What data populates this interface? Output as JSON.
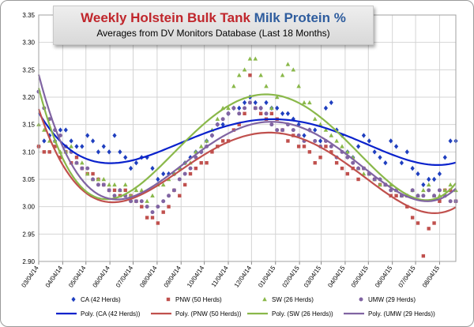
{
  "chart_data": {
    "type": "scatter",
    "title_parts": [
      "Weekly Holstein Bulk Tank ",
      "Milk Protein %"
    ],
    "subtitle": "Averages from DV Monitors Database (Last 18 Months)",
    "xlabel": "",
    "ylabel": "",
    "ylim": [
      2.9,
      3.35
    ],
    "yticks": [
      "2.90",
      "2.95",
      "3.00",
      "3.05",
      "3.10",
      "3.15",
      "3.20",
      "3.25",
      "3.30",
      "3.35"
    ],
    "xlim": [
      "2014-03-04",
      "2015-08-25"
    ],
    "xticks": [
      "03/04/14",
      "04/04/14",
      "05/04/14",
      "06/04/14",
      "07/04/14",
      "08/04/14",
      "09/04/14",
      "10/04/14",
      "11/04/14",
      "12/04/14",
      "01/04/15",
      "02/04/15",
      "03/04/15",
      "04/04/15",
      "05/04/15",
      "06/04/15",
      "07/04/15",
      "08/04/15"
    ],
    "grid": true,
    "legend_position": "bottom",
    "series": [
      {
        "name": "CA (42 Herds)",
        "color": "#1f3fbf",
        "marker": "diamond",
        "x": [
          "2014-03-04",
          "2014-03-11",
          "2014-03-18",
          "2014-03-25",
          "2014-04-01",
          "2014-04-08",
          "2014-04-15",
          "2014-04-22",
          "2014-04-29",
          "2014-05-06",
          "2014-05-13",
          "2014-05-20",
          "2014-05-27",
          "2014-06-03",
          "2014-06-10",
          "2014-06-17",
          "2014-06-24",
          "2014-07-01",
          "2014-07-08",
          "2014-07-15",
          "2014-07-22",
          "2014-07-29",
          "2014-08-05",
          "2014-08-12",
          "2014-08-19",
          "2014-08-26",
          "2014-09-02",
          "2014-09-09",
          "2014-09-16",
          "2014-09-23",
          "2014-09-30",
          "2014-10-07",
          "2014-10-14",
          "2014-10-21",
          "2014-10-28",
          "2014-11-04",
          "2014-11-11",
          "2014-11-18",
          "2014-11-25",
          "2014-12-02",
          "2014-12-09",
          "2014-12-16",
          "2014-12-23",
          "2014-12-30",
          "2015-01-06",
          "2015-01-13",
          "2015-01-20",
          "2015-01-27",
          "2015-02-03",
          "2015-02-10",
          "2015-02-17",
          "2015-02-24",
          "2015-03-03",
          "2015-03-10",
          "2015-03-17",
          "2015-03-24",
          "2015-03-31",
          "2015-04-07",
          "2015-04-14",
          "2015-04-21",
          "2015-04-28",
          "2015-05-05",
          "2015-05-12",
          "2015-05-19",
          "2015-05-26",
          "2015-06-02",
          "2015-06-09",
          "2015-06-16",
          "2015-06-23",
          "2015-06-30",
          "2015-07-07",
          "2015-07-14",
          "2015-07-21",
          "2015-07-28",
          "2015-08-04",
          "2015-08-11",
          "2015-08-18",
          "2015-08-25"
        ],
        "y": [
          3.11,
          3.12,
          3.13,
          3.12,
          3.14,
          3.14,
          3.12,
          3.11,
          3.11,
          3.13,
          3.12,
          3.1,
          3.11,
          3.1,
          3.13,
          3.1,
          3.09,
          3.07,
          3.08,
          3.09,
          3.09,
          3.07,
          3.05,
          3.06,
          3.06,
          3.06,
          3.07,
          3.08,
          3.09,
          3.1,
          3.1,
          3.12,
          3.13,
          3.15,
          3.15,
          3.17,
          3.18,
          3.18,
          3.19,
          3.2,
          3.19,
          3.18,
          3.19,
          3.18,
          3.18,
          3.17,
          3.17,
          3.16,
          3.15,
          3.13,
          3.14,
          3.14,
          3.12,
          3.18,
          3.19,
          3.14,
          3.13,
          3.1,
          3.09,
          3.11,
          3.13,
          3.12,
          3.1,
          3.09,
          3.08,
          3.12,
          3.11,
          3.08,
          3.1,
          3.07,
          3.06,
          3.04,
          3.05,
          3.05,
          3.06,
          3.09,
          3.12,
          3.12
        ]
      },
      {
        "name": "PNW (50 Herds)",
        "color": "#c0504d",
        "marker": "square",
        "x": [
          "2014-03-04",
          "2014-03-11",
          "2014-03-18",
          "2014-03-25",
          "2014-04-01",
          "2014-04-08",
          "2014-04-15",
          "2014-04-22",
          "2014-04-29",
          "2014-05-06",
          "2014-05-13",
          "2014-05-20",
          "2014-05-27",
          "2014-06-03",
          "2014-06-10",
          "2014-06-17",
          "2014-06-24",
          "2014-07-01",
          "2014-07-08",
          "2014-07-15",
          "2014-07-22",
          "2014-07-29",
          "2014-08-05",
          "2014-08-12",
          "2014-08-19",
          "2014-08-26",
          "2014-09-02",
          "2014-09-09",
          "2014-09-16",
          "2014-09-23",
          "2014-09-30",
          "2014-10-07",
          "2014-10-14",
          "2014-10-21",
          "2014-10-28",
          "2014-11-04",
          "2014-11-11",
          "2014-11-18",
          "2014-11-25",
          "2014-12-02",
          "2014-12-09",
          "2014-12-16",
          "2014-12-23",
          "2014-12-30",
          "2015-01-06",
          "2015-01-13",
          "2015-01-20",
          "2015-01-27",
          "2015-02-03",
          "2015-02-10",
          "2015-02-17",
          "2015-02-24",
          "2015-03-03",
          "2015-03-10",
          "2015-03-17",
          "2015-03-24",
          "2015-03-31",
          "2015-04-07",
          "2015-04-14",
          "2015-04-21",
          "2015-04-28",
          "2015-05-05",
          "2015-05-12",
          "2015-05-19",
          "2015-05-26",
          "2015-06-02",
          "2015-06-09",
          "2015-06-16",
          "2015-06-23",
          "2015-06-30",
          "2015-07-07",
          "2015-07-14",
          "2015-07-21",
          "2015-07-28",
          "2015-08-04",
          "2015-08-11",
          "2015-08-18",
          "2015-08-25"
        ],
        "y": [
          3.11,
          3.1,
          3.1,
          3.11,
          3.09,
          3.1,
          3.08,
          3.09,
          3.07,
          3.06,
          3.06,
          3.05,
          3.04,
          3.03,
          3.03,
          3.02,
          3.03,
          3.02,
          3.01,
          3.0,
          2.98,
          2.98,
          2.97,
          2.99,
          3.0,
          3.03,
          3.02,
          3.04,
          3.06,
          3.07,
          3.08,
          3.08,
          3.1,
          3.11,
          3.12,
          3.12,
          3.14,
          3.15,
          3.17,
          3.24,
          3.18,
          3.17,
          3.16,
          3.17,
          3.16,
          3.14,
          3.12,
          3.13,
          3.11,
          3.11,
          3.1,
          3.08,
          3.09,
          3.11,
          3.1,
          3.08,
          3.07,
          3.06,
          3.07,
          3.05,
          3.07,
          3.06,
          3.05,
          3.04,
          3.04,
          3.02,
          3.02,
          3.02,
          3.0,
          2.98,
          2.97,
          2.91,
          2.96,
          2.97,
          3.01,
          3.03,
          3.03,
          3.01
        ]
      },
      {
        "name": "SW (26 Herds)",
        "color": "#8ab84a",
        "marker": "triangle",
        "x": [
          "2014-03-04",
          "2014-03-11",
          "2014-03-18",
          "2014-03-25",
          "2014-04-01",
          "2014-04-08",
          "2014-04-15",
          "2014-04-22",
          "2014-04-29",
          "2014-05-06",
          "2014-05-13",
          "2014-05-20",
          "2014-05-27",
          "2014-06-03",
          "2014-06-10",
          "2014-06-17",
          "2014-06-24",
          "2014-07-01",
          "2014-07-08",
          "2014-07-15",
          "2014-07-22",
          "2014-07-29",
          "2014-08-05",
          "2014-08-12",
          "2014-08-19",
          "2014-08-26",
          "2014-09-02",
          "2014-09-09",
          "2014-09-16",
          "2014-09-23",
          "2014-09-30",
          "2014-10-07",
          "2014-10-14",
          "2014-10-21",
          "2014-10-28",
          "2014-11-04",
          "2014-11-11",
          "2014-11-18",
          "2014-11-25",
          "2014-12-02",
          "2014-12-09",
          "2014-12-16",
          "2014-12-23",
          "2014-12-30",
          "2015-01-06",
          "2015-01-13",
          "2015-01-20",
          "2015-01-27",
          "2015-02-03",
          "2015-02-10",
          "2015-02-17",
          "2015-02-24",
          "2015-03-03",
          "2015-03-10",
          "2015-03-17",
          "2015-03-24",
          "2015-03-31",
          "2015-04-07",
          "2015-04-14",
          "2015-04-21",
          "2015-04-28",
          "2015-05-05",
          "2015-05-12",
          "2015-05-19",
          "2015-05-26",
          "2015-06-02",
          "2015-06-09",
          "2015-06-16",
          "2015-06-23",
          "2015-06-30",
          "2015-07-07",
          "2015-07-14",
          "2015-07-21",
          "2015-07-28",
          "2015-08-04",
          "2015-08-11",
          "2015-08-18",
          "2015-08-25"
        ],
        "y": [
          3.15,
          3.14,
          3.12,
          3.12,
          3.1,
          3.1,
          3.11,
          3.08,
          3.08,
          3.06,
          3.05,
          3.05,
          3.05,
          3.04,
          3.04,
          3.03,
          3.04,
          3.02,
          3.03,
          3.03,
          3.01,
          3.02,
          3.04,
          3.04,
          3.05,
          3.06,
          3.07,
          3.08,
          3.08,
          3.1,
          3.11,
          3.12,
          3.14,
          3.16,
          3.18,
          3.18,
          3.22,
          3.24,
          3.25,
          3.27,
          3.27,
          3.24,
          3.22,
          3.18,
          3.2,
          3.24,
          3.26,
          3.25,
          3.22,
          3.19,
          3.19,
          3.16,
          3.15,
          3.14,
          3.13,
          3.12,
          3.11,
          3.1,
          3.09,
          3.07,
          3.06,
          3.06,
          3.05,
          3.04,
          3.04,
          3.04,
          3.03,
          3.02,
          3.02,
          3.03,
          3.02,
          3.03,
          3.04,
          3.02,
          3.02,
          3.03,
          3.04,
          3.03
        ]
      },
      {
        "name": "UMW (29 Herds)",
        "color": "#8064a2",
        "marker": "circle",
        "x": [
          "2014-03-04",
          "2014-03-11",
          "2014-03-18",
          "2014-03-25",
          "2014-04-01",
          "2014-04-08",
          "2014-04-15",
          "2014-04-22",
          "2014-04-29",
          "2014-05-06",
          "2014-05-13",
          "2014-05-20",
          "2014-05-27",
          "2014-06-03",
          "2014-06-10",
          "2014-06-17",
          "2014-06-24",
          "2014-07-01",
          "2014-07-08",
          "2014-07-15",
          "2014-07-22",
          "2014-07-29",
          "2014-08-05",
          "2014-08-12",
          "2014-08-19",
          "2014-08-26",
          "2014-09-02",
          "2014-09-09",
          "2014-09-16",
          "2014-09-23",
          "2014-09-30",
          "2014-10-07",
          "2014-10-14",
          "2014-10-21",
          "2014-10-28",
          "2014-11-04",
          "2014-11-11",
          "2014-11-18",
          "2014-11-25",
          "2014-12-02",
          "2014-12-09",
          "2014-12-16",
          "2014-12-23",
          "2014-12-30",
          "2015-01-06",
          "2015-01-13",
          "2015-01-20",
          "2015-01-27",
          "2015-02-03",
          "2015-02-10",
          "2015-02-17",
          "2015-02-24",
          "2015-03-03",
          "2015-03-10",
          "2015-03-17",
          "2015-03-24",
          "2015-03-31",
          "2015-04-07",
          "2015-04-14",
          "2015-04-21",
          "2015-04-28",
          "2015-05-05",
          "2015-05-12",
          "2015-05-19",
          "2015-05-26",
          "2015-06-02",
          "2015-06-09",
          "2015-06-16",
          "2015-06-23",
          "2015-06-30",
          "2015-07-07",
          "2015-07-14",
          "2015-07-21",
          "2015-07-28",
          "2015-08-04",
          "2015-08-11",
          "2015-08-18",
          "2015-08-25"
        ],
        "y": [
          3.21,
          3.18,
          3.16,
          3.14,
          3.13,
          3.11,
          3.1,
          3.08,
          3.07,
          3.07,
          3.05,
          3.04,
          3.04,
          3.03,
          3.02,
          3.03,
          3.02,
          3.01,
          3.01,
          3.01,
          3.0,
          2.99,
          3.0,
          3.01,
          3.02,
          3.03,
          3.05,
          3.06,
          3.07,
          3.09,
          3.1,
          3.11,
          3.13,
          3.15,
          3.16,
          3.17,
          3.18,
          3.17,
          3.18,
          3.19,
          3.18,
          3.18,
          3.17,
          3.15,
          3.14,
          3.14,
          3.15,
          3.14,
          3.13,
          3.12,
          3.14,
          3.12,
          3.11,
          3.12,
          3.11,
          3.09,
          3.1,
          3.09,
          3.08,
          3.07,
          3.07,
          3.06,
          3.05,
          3.05,
          3.04,
          3.03,
          3.03,
          3.02,
          3.02,
          3.03,
          3.02,
          3.02,
          3.03,
          3.02,
          3.03,
          3.02,
          3.01,
          3.01
        ]
      }
    ],
    "trendlines": [
      {
        "name": "Poly. (CA (42 Herds))",
        "color": "#0a22cc",
        "of_series": 0
      },
      {
        "name": "Poly. (PNW (50 Herds))",
        "color": "#c0504d",
        "of_series": 1
      },
      {
        "name": "Poly. (SW (26 Herds))",
        "color": "#8ab84a",
        "of_series": 2
      },
      {
        "name": "Poly. (UMW (29 Herds))",
        "color": "#8064a2",
        "of_series": 3
      }
    ]
  }
}
